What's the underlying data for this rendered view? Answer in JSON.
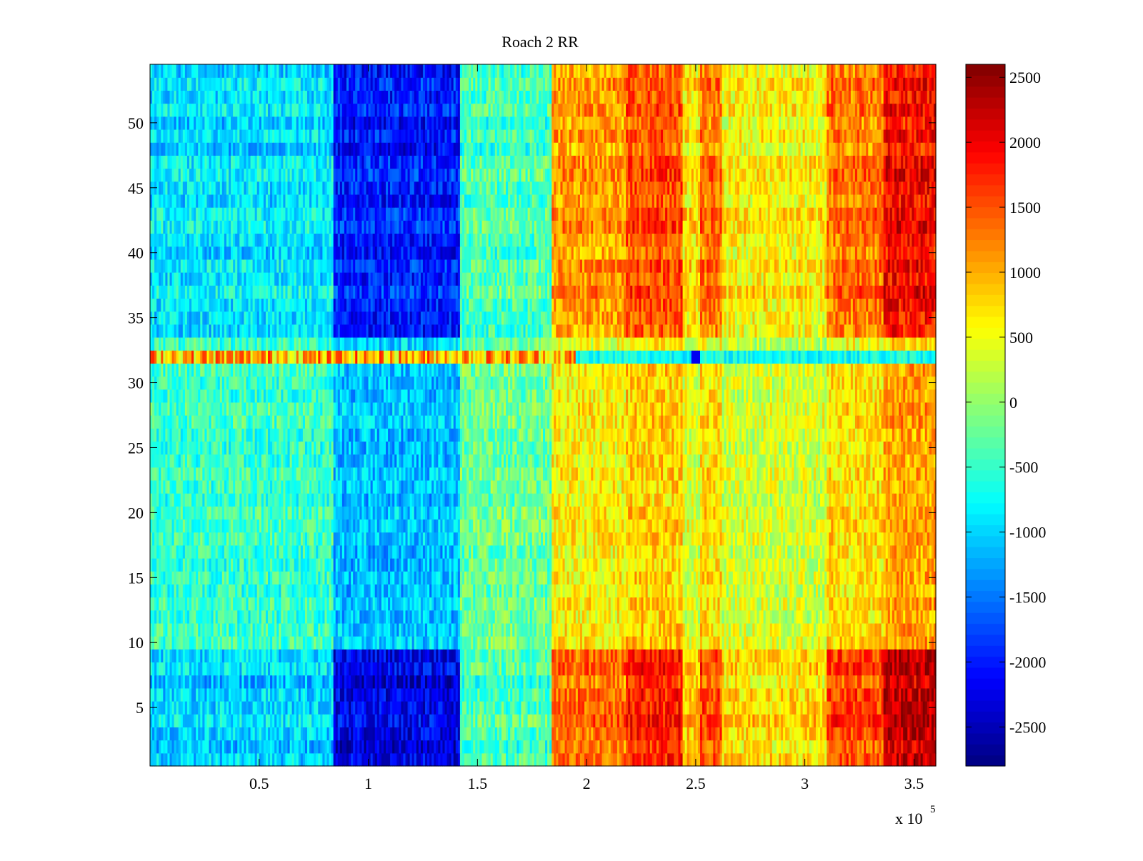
{
  "chart_data": {
    "type": "heatmap",
    "title": "Roach 2 RR",
    "xlabel": "",
    "ylabel": "",
    "x_range": [
      0,
      360000
    ],
    "y_range": [
      0.5,
      54.5
    ],
    "x_ticks": [
      50000,
      100000,
      150000,
      200000,
      250000,
      300000,
      350000
    ],
    "x_tick_labels": [
      "0.5",
      "1",
      "1.5",
      "2",
      "2.5",
      "3",
      "3.5"
    ],
    "x_exponent_label": "x 10",
    "x_exponent_power": "5",
    "y_ticks": [
      5,
      10,
      15,
      20,
      25,
      30,
      35,
      40,
      45,
      50
    ],
    "y_tick_labels": [
      "5",
      "10",
      "15",
      "20",
      "25",
      "30",
      "35",
      "40",
      "45",
      "50"
    ],
    "colorbar": {
      "colormap": "jet",
      "range": [
        -2800,
        2600
      ],
      "ticks": [
        -2500,
        -2000,
        -1500,
        -1000,
        -500,
        0,
        500,
        1000,
        1500,
        2000,
        2500
      ],
      "tick_labels": [
        "-2500",
        "-2000",
        "-1500",
        "-1000",
        "-500",
        "0",
        "500",
        "1000",
        "1500",
        "2000",
        "2500"
      ]
    },
    "n_rows": 54,
    "x_segments": [
      {
        "x_start": 0,
        "x_end": 84000,
        "mean_value": -900
      },
      {
        "x_start": 84000,
        "x_end": 142000,
        "mean_value": -2000
      },
      {
        "x_start": 142000,
        "x_end": 184000,
        "mean_value": -400
      },
      {
        "x_start": 184000,
        "x_end": 218000,
        "mean_value": 1100
      },
      {
        "x_start": 218000,
        "x_end": 244000,
        "mean_value": 1500
      },
      {
        "x_start": 244000,
        "x_end": 252000,
        "mean_value": 700
      },
      {
        "x_start": 252000,
        "x_end": 262000,
        "mean_value": 1300
      },
      {
        "x_start": 262000,
        "x_end": 310000,
        "mean_value": 600
      },
      {
        "x_start": 310000,
        "x_end": 336000,
        "mean_value": 1300
      },
      {
        "x_start": 336000,
        "x_end": 360000,
        "mean_value": 1900
      }
    ],
    "row_intensity_notes": "rows 1-9 and 34-54 strongest contrast; rows 10-31 damped; row 32 anomalous (warm left, cool right)"
  }
}
